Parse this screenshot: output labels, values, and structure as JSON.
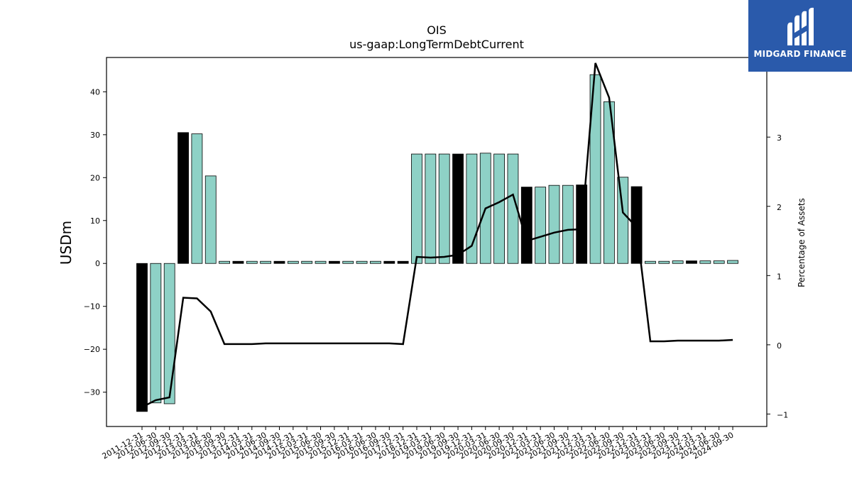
{
  "chart_data": {
    "type": "bar",
    "title": "OIS",
    "subtitle": "us-gaap:LongTermDebtCurrent",
    "ylabel": "USDm",
    "y2label": "Percentage of Assets",
    "ylim": [
      -38,
      48
    ],
    "y2lim": [
      -1.18,
      4.15
    ],
    "yticks": [
      -30,
      -20,
      -10,
      0,
      10,
      20,
      30,
      40
    ],
    "y2ticks": [
      -1,
      0,
      1,
      2,
      3,
      4
    ],
    "categories": [
      "2011-12-31",
      "2012-06-30",
      "2012-09-30",
      "2012-12-31",
      "2013-03-31",
      "2013-06-30",
      "2013-09-30",
      "2013-12-31",
      "2014-03-31",
      "2014-06-30",
      "2014-09-30",
      "2014-12-31",
      "2015-03-31",
      "2015-06-30",
      "2015-09-30",
      "2015-12-31",
      "2016-03-31",
      "2016-06-30",
      "2016-09-30",
      "2017-12-31",
      "2018-12-31",
      "2019-03-31",
      "2019-06-30",
      "2019-09-30",
      "2019-12-31",
      "2020-03-31",
      "2020-06-30",
      "2020-09-30",
      "2020-12-31",
      "2021-03-31",
      "2021-06-30",
      "2021-09-30",
      "2021-12-31",
      "2022-03-31",
      "2022-06-30",
      "2022-09-30",
      "2022-12-31",
      "2023-03-31",
      "2023-06-30",
      "2023-09-30",
      "2023-12-31",
      "2024-03-31",
      "2024-06-30",
      "2024-09-30"
    ],
    "series": [
      {
        "values": [
          -34.5,
          -32.5,
          -32.7,
          30.5,
          30.2,
          20.4,
          0.5,
          0.5,
          0.5,
          0.5,
          0.5,
          0.5,
          0.5,
          0.5,
          0.5,
          0.5,
          0.5,
          0.5,
          0.5,
          0.5,
          25.5,
          25.5,
          25.5,
          25.5,
          25.5,
          25.7,
          25.5,
          25.5,
          17.8,
          17.8,
          18.2,
          18.2,
          18.3,
          44.0,
          37.7,
          20.1,
          17.9,
          0.5,
          0.5,
          0.6,
          0.6,
          0.6,
          0.6,
          0.7
        ],
        "highlight": [
          true,
          false,
          false,
          true,
          false,
          false,
          false,
          true,
          false,
          false,
          true,
          false,
          false,
          false,
          true,
          false,
          false,
          false,
          true,
          true,
          false,
          false,
          false,
          true,
          false,
          false,
          false,
          false,
          true,
          false,
          false,
          false,
          true,
          false,
          false,
          false,
          true,
          false,
          false,
          false,
          true,
          false,
          false,
          false
        ]
      },
      {
        "name": "Percentage of Assets",
        "axis": "right",
        "values": [
          -0.9,
          -0.8,
          -0.76,
          0.68,
          0.67,
          0.48,
          0.01,
          0.01,
          0.01,
          0.02,
          0.02,
          0.02,
          0.02,
          0.02,
          0.02,
          0.02,
          0.02,
          0.02,
          0.02,
          0.01,
          1.27,
          1.26,
          1.27,
          1.3,
          1.43,
          1.97,
          2.06,
          2.17,
          1.5,
          1.56,
          1.62,
          1.66,
          1.67,
          4.07,
          3.57,
          1.91,
          1.7,
          0.05,
          0.05,
          0.06,
          0.06,
          0.06,
          0.06,
          0.07
        ]
      }
    ],
    "colors": {
      "bar": "#8ed1c6",
      "bar_highlight": "#000000",
      "line": "#000000"
    }
  },
  "logo": {
    "text": "MIDGARD FINANCE",
    "bg": "#2a5aab"
  }
}
